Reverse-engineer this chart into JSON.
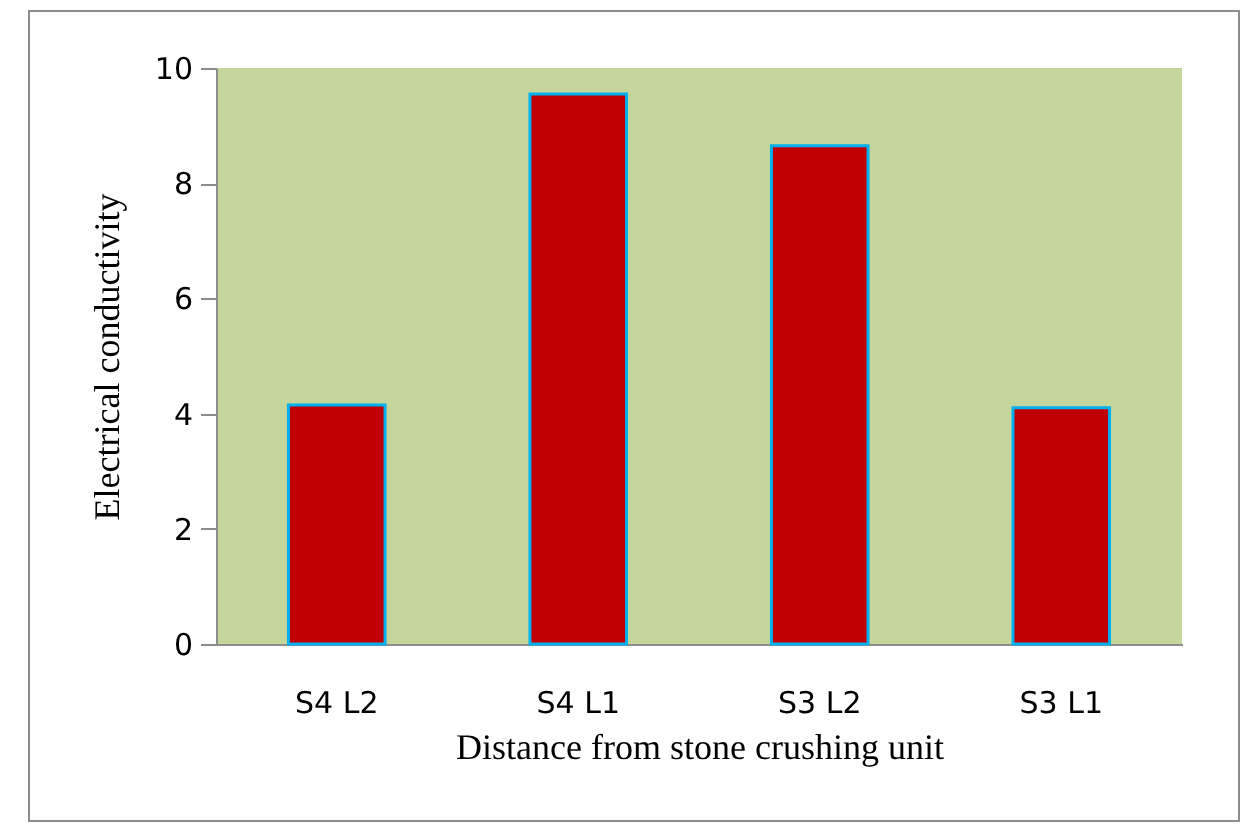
{
  "chart_data": {
    "type": "bar",
    "xlabel": "Distance from stone crushing unit",
    "ylabel": "Electrical conductivity",
    "categories": [
      "S4 L2",
      "S4 L1",
      "S3 L2",
      "S3 L1"
    ],
    "values": [
      4.15,
      9.55,
      8.65,
      4.1
    ],
    "color": "#c00000",
    "ylim": [
      0,
      10
    ],
    "yticks": [
      0,
      2,
      4,
      6,
      8,
      10
    ],
    "grid": false
  }
}
